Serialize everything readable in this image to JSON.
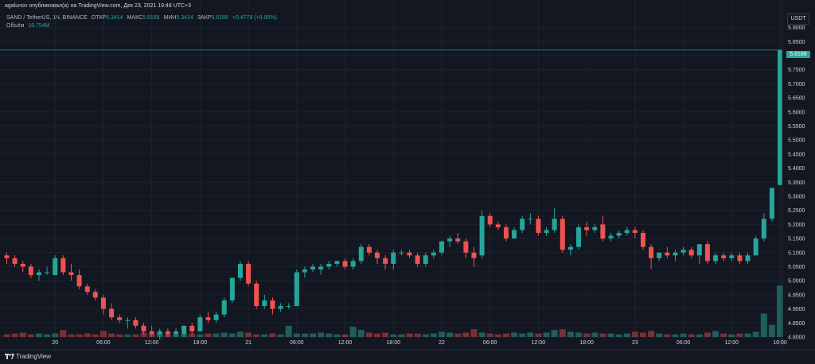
{
  "header": {
    "published": "agalunov опубликовал(а) на TradingView.com, Дек 23, 2021 19:48 UTC+3"
  },
  "legend": {
    "symbol": "SAND / TetherUS, 1Ч, BINANCE",
    "open_label": "ОТКР",
    "open": "5.3414",
    "high_label": "МАКС",
    "high": "5.8188",
    "low_label": "МИН",
    "low": "5.3414",
    "close_label": "ЗАКР",
    "close": "5.8188",
    "change": "+0.4779 (+8.95%)",
    "volume_label": "Объём",
    "volume": "16.754М"
  },
  "price_axis": {
    "unit": "USDT",
    "current_price": "5.8188"
  },
  "footer": {
    "brand": "TradingView"
  },
  "colors": {
    "up": "#26a69a",
    "down": "#ef5350",
    "background": "#131722",
    "grid": "#1e222d",
    "text": "#d1d4dc"
  },
  "chart_data": {
    "type": "candlestick",
    "y_ticks": [
      4.8,
      4.85,
      4.9,
      4.95,
      5.0,
      5.05,
      5.1,
      5.15,
      5.2,
      5.25,
      5.3,
      5.35,
      5.4,
      5.45,
      5.5,
      5.55,
      5.6,
      5.65,
      5.7,
      5.75,
      5.8,
      5.85,
      5.9
    ],
    "ylim": [
      4.775,
      5.96
    ],
    "x_ticks": [
      {
        "label": "20",
        "i": 6
      },
      {
        "label": "06:00",
        "i": 12
      },
      {
        "label": "12:00",
        "i": 18
      },
      {
        "label": "18:00",
        "i": 24
      },
      {
        "label": "21",
        "i": 30
      },
      {
        "label": "06:00",
        "i": 36
      },
      {
        "label": "12:00",
        "i": 42
      },
      {
        "label": "18:00",
        "i": 48
      },
      {
        "label": "22",
        "i": 54
      },
      {
        "label": "06:00",
        "i": 60
      },
      {
        "label": "12:00",
        "i": 66
      },
      {
        "label": "18:00",
        "i": 72
      },
      {
        "label": "23",
        "i": 78
      },
      {
        "label": "06:00",
        "i": 84
      },
      {
        "label": "12:00",
        "i": 90
      },
      {
        "label": "18:00",
        "i": 96
      }
    ],
    "ohlc": [
      [
        5.09,
        5.1,
        5.06,
        5.08
      ],
      [
        5.08,
        5.09,
        5.05,
        5.06
      ],
      [
        5.06,
        5.07,
        5.03,
        5.05
      ],
      [
        5.05,
        5.06,
        5.01,
        5.02
      ],
      [
        5.02,
        5.04,
        5.0,
        5.03
      ],
      [
        5.03,
        5.05,
        5.02,
        5.03
      ],
      [
        5.02,
        5.09,
        5.02,
        5.08
      ],
      [
        5.08,
        5.09,
        5.02,
        5.03
      ],
      [
        5.03,
        5.06,
        5.0,
        5.02
      ],
      [
        5.02,
        5.04,
        4.97,
        4.98
      ],
      [
        4.98,
        4.99,
        4.95,
        4.96
      ],
      [
        4.96,
        4.97,
        4.93,
        4.94
      ],
      [
        4.94,
        4.95,
        4.88,
        4.9
      ],
      [
        4.9,
        4.92,
        4.86,
        4.87
      ],
      [
        4.87,
        4.88,
        4.85,
        4.86
      ],
      [
        4.86,
        4.87,
        4.83,
        4.86
      ],
      [
        4.86,
        4.87,
        4.83,
        4.84
      ],
      [
        4.84,
        4.85,
        4.81,
        4.82
      ],
      [
        4.82,
        4.84,
        4.8,
        4.81
      ],
      [
        4.81,
        4.83,
        4.79,
        4.82
      ],
      [
        4.82,
        4.83,
        4.8,
        4.81
      ],
      [
        4.81,
        4.83,
        4.8,
        4.82
      ],
      [
        4.81,
        4.84,
        4.8,
        4.84
      ],
      [
        4.84,
        4.85,
        4.81,
        4.82
      ],
      [
        4.82,
        4.88,
        4.82,
        4.87
      ],
      [
        4.87,
        4.89,
        4.85,
        4.86
      ],
      [
        4.86,
        4.89,
        4.85,
        4.88
      ],
      [
        4.88,
        4.94,
        4.87,
        4.93
      ],
      [
        4.93,
        5.01,
        4.92,
        5.01
      ],
      [
        5.01,
        5.07,
        5.0,
        5.06
      ],
      [
        5.06,
        5.07,
        4.98,
        4.99
      ],
      [
        4.99,
        5.0,
        4.9,
        4.91
      ],
      [
        4.91,
        4.95,
        4.9,
        4.93
      ],
      [
        4.93,
        4.94,
        4.88,
        4.9
      ],
      [
        4.9,
        4.92,
        4.89,
        4.91
      ],
      [
        4.91,
        4.92,
        4.9,
        4.91
      ],
      [
        4.91,
        5.04,
        4.91,
        5.03
      ],
      [
        5.03,
        5.05,
        5.01,
        5.04
      ],
      [
        5.04,
        5.06,
        5.03,
        5.05
      ],
      [
        5.04,
        5.06,
        5.02,
        5.05
      ],
      [
        5.05,
        5.07,
        5.04,
        5.06
      ],
      [
        5.06,
        5.07,
        5.05,
        5.07
      ],
      [
        5.07,
        5.08,
        5.04,
        5.05
      ],
      [
        5.05,
        5.08,
        5.04,
        5.07
      ],
      [
        5.07,
        5.13,
        5.06,
        5.12
      ],
      [
        5.12,
        5.13,
        5.09,
        5.1
      ],
      [
        5.1,
        5.11,
        5.06,
        5.08
      ],
      [
        5.08,
        5.09,
        5.04,
        5.06
      ],
      [
        5.06,
        5.11,
        5.04,
        5.1
      ],
      [
        5.1,
        5.11,
        5.09,
        5.1
      ],
      [
        5.1,
        5.11,
        5.08,
        5.09
      ],
      [
        5.09,
        5.1,
        5.05,
        5.06
      ],
      [
        5.06,
        5.1,
        5.05,
        5.09
      ],
      [
        5.09,
        5.11,
        5.08,
        5.1
      ],
      [
        5.1,
        5.14,
        5.09,
        5.14
      ],
      [
        5.14,
        5.16,
        5.12,
        5.15
      ],
      [
        5.15,
        5.17,
        5.13,
        5.14
      ],
      [
        5.14,
        5.15,
        5.08,
        5.1
      ],
      [
        5.1,
        5.12,
        5.05,
        5.08
      ],
      [
        5.09,
        5.25,
        5.08,
        5.23
      ],
      [
        5.23,
        5.24,
        5.19,
        5.2
      ],
      [
        5.2,
        5.21,
        5.18,
        5.19
      ],
      [
        5.19,
        5.2,
        5.14,
        5.15
      ],
      [
        5.15,
        5.19,
        5.15,
        5.18
      ],
      [
        5.18,
        5.23,
        5.17,
        5.22
      ],
      [
        5.22,
        5.24,
        5.2,
        5.22
      ],
      [
        5.22,
        5.23,
        5.16,
        5.17
      ],
      [
        5.17,
        5.19,
        5.16,
        5.18
      ],
      [
        5.18,
        5.26,
        5.17,
        5.22
      ],
      [
        5.22,
        5.23,
        5.1,
        5.11
      ],
      [
        5.11,
        5.13,
        5.09,
        5.12
      ],
      [
        5.12,
        5.2,
        5.11,
        5.19
      ],
      [
        5.19,
        5.21,
        5.16,
        5.18
      ],
      [
        5.18,
        5.2,
        5.17,
        5.19
      ],
      [
        5.2,
        5.23,
        5.14,
        5.15
      ],
      [
        5.15,
        5.17,
        5.14,
        5.16
      ],
      [
        5.16,
        5.18,
        5.15,
        5.17
      ],
      [
        5.17,
        5.19,
        5.16,
        5.18
      ],
      [
        5.18,
        5.19,
        5.15,
        5.17
      ],
      [
        5.17,
        5.18,
        5.11,
        5.12
      ],
      [
        5.12,
        5.13,
        5.04,
        5.08
      ],
      [
        5.08,
        5.1,
        5.07,
        5.1
      ],
      [
        5.1,
        5.12,
        5.08,
        5.09
      ],
      [
        5.09,
        5.11,
        5.07,
        5.1
      ],
      [
        5.1,
        5.12,
        5.09,
        5.11
      ],
      [
        5.11,
        5.12,
        5.08,
        5.09
      ],
      [
        5.09,
        5.12,
        5.06,
        5.13
      ],
      [
        5.13,
        5.14,
        5.06,
        5.07
      ],
      [
        5.07,
        5.1,
        5.06,
        5.09
      ],
      [
        5.09,
        5.1,
        5.07,
        5.08
      ],
      [
        5.08,
        5.1,
        5.07,
        5.09
      ],
      [
        5.09,
        5.1,
        5.06,
        5.07
      ],
      [
        5.07,
        5.1,
        5.06,
        5.09
      ],
      [
        5.09,
        5.16,
        5.09,
        5.15
      ],
      [
        5.15,
        5.24,
        5.14,
        5.22
      ],
      [
        5.22,
        5.33,
        5.21,
        5.33
      ],
      [
        5.34,
        5.82,
        5.34,
        5.82
      ]
    ],
    "volume": [
      3,
      4,
      5,
      3,
      4,
      3,
      4,
      8,
      3,
      3,
      4,
      3,
      7,
      4,
      3,
      3,
      3,
      5,
      3,
      4,
      3,
      3,
      3,
      4,
      3,
      4,
      4,
      5,
      4,
      6,
      5,
      3,
      3,
      4,
      3,
      13,
      4,
      4,
      4,
      5,
      4,
      3,
      3,
      12,
      8,
      5,
      4,
      5,
      3,
      3,
      4,
      4,
      3,
      4,
      6,
      5,
      4,
      5,
      9,
      5,
      4,
      3,
      4,
      5,
      4,
      5,
      4,
      5,
      8,
      9,
      6,
      5,
      4,
      5,
      4,
      4,
      3,
      4,
      6,
      5,
      7,
      4,
      3,
      3,
      4,
      3,
      3,
      5,
      7,
      4,
      3,
      4,
      4,
      6,
      27,
      14,
      59
    ],
    "volume_max": 64
  }
}
